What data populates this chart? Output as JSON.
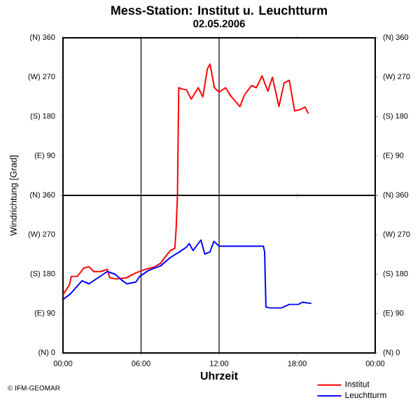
{
  "chart_data": [
    {
      "type": "line",
      "title": "Mess-Station: Institut u. Leuchtturm",
      "subtitle": "02.05.2006",
      "xlim": [
        0,
        24
      ],
      "xticks": [
        {
          "value": 0,
          "label": null
        },
        {
          "value": 6,
          "label": null
        },
        {
          "value": 12,
          "label": null
        },
        {
          "value": 18,
          "label": null
        },
        {
          "value": 24,
          "label": null
        }
      ],
      "ylim": [
        0,
        360
      ],
      "yticks": [
        {
          "value": 0,
          "label": null
        },
        {
          "value": 90,
          "label": "(E) 90"
        },
        {
          "value": 180,
          "label": "(S) 180"
        },
        {
          "value": 270,
          "label": "(W) 270"
        },
        {
          "value": 360,
          "label": "(N) 360"
        }
      ],
      "y2lim": [
        0,
        360
      ],
      "y2ticks": [
        {
          "value": 0,
          "label": null
        },
        {
          "value": 90,
          "label": "(E) 90"
        },
        {
          "value": 180,
          "label": "(S) 180"
        },
        {
          "value": 270,
          "label": "(W) 270"
        },
        {
          "value": 360,
          "label": "(N) 360"
        }
      ],
      "tick_labels": "y",
      "ref_lines": [
        {
          "axis": "x",
          "value": 6,
          "color": "#000000"
        },
        {
          "axis": "x",
          "value": 12,
          "color": "#000000"
        }
      ],
      "grid": false,
      "marker": "none",
      "line_style": "solid",
      "series": [
        {
          "color": "#ff0000",
          "x": [
            8.8,
            8.85,
            8.9,
            9.14,
            9.5,
            9.86,
            10.4,
            10.75,
            11.1,
            11.3,
            11.64,
            12.0,
            12.5,
            12.9,
            13.6,
            13.96,
            14.5,
            14.86,
            15.3,
            15.75,
            16.1,
            16.6,
            17.0,
            17.4,
            17.8,
            18.25,
            18.6,
            18.86
          ],
          "values": [
            0,
            128,
            246,
            243,
            241,
            220,
            246,
            225,
            289,
            300,
            246,
            236,
            246,
            227,
            203,
            230,
            251,
            246,
            273,
            238,
            270,
            203,
            257,
            263,
            193,
            196,
            202,
            187
          ]
        }
      ]
    },
    {
      "type": "line",
      "xlabel": "Uhrzeit",
      "ylabel": "Windrichtung [Grad]",
      "annotations": [
        "© IFM-GEOMAR"
      ],
      "xlim": [
        0,
        24
      ],
      "xticks": [
        {
          "value": 0,
          "label": "00:00"
        },
        {
          "value": 6,
          "label": "06:00"
        },
        {
          "value": 12,
          "label": "12:00"
        },
        {
          "value": 18,
          "label": "18:00"
        },
        {
          "value": 24,
          "label": "00:00"
        }
      ],
      "ylim": [
        0,
        360
      ],
      "yticks": [
        {
          "value": 0,
          "label": "(N) 0"
        },
        {
          "value": 90,
          "label": "(E) 90"
        },
        {
          "value": 180,
          "label": "(S) 180"
        },
        {
          "value": 270,
          "label": "(W) 270"
        },
        {
          "value": 360,
          "label": "(N) 360"
        }
      ],
      "y2lim": [
        0,
        360
      ],
      "y2ticks": [
        {
          "value": 0,
          "label": "(N) 0"
        },
        {
          "value": 90,
          "label": "(E) 90"
        },
        {
          "value": 180,
          "label": "(S) 180"
        },
        {
          "value": 270,
          "label": "(W) 270"
        },
        {
          "value": 360,
          "label": "(N) 360"
        }
      ],
      "ref_lines": [
        {
          "axis": "x",
          "value": 6,
          "color": "#000000"
        },
        {
          "axis": "x",
          "value": 12,
          "color": "#000000"
        }
      ],
      "legend": "bottom right",
      "grid": false,
      "marker": "none",
      "line_style": "solid",
      "series": [
        {
          "name": "Institut",
          "color": "#ff0000",
          "x": [
            0,
            0.5,
            0.64,
            1.1,
            1.6,
            2.0,
            2.36,
            2.9,
            3.4,
            3.6,
            4.1,
            4.9,
            5.6,
            6.3,
            7.0,
            7.5,
            7.9,
            8.25,
            8.6,
            8.7,
            8.8
          ],
          "values": [
            133,
            156,
            175,
            175,
            194,
            197,
            186,
            186,
            191,
            172,
            169,
            172,
            183,
            191,
            196,
            205,
            221,
            234,
            239,
            285,
            360
          ]
        },
        {
          "name": "Leuchtturm",
          "color": "#0000ff",
          "x": [
            0,
            0.57,
            1.46,
            2.0,
            2.7,
            3.4,
            4.0,
            4.5,
            4.9,
            5.6,
            5.9,
            6.6,
            7.5,
            8.25,
            8.96,
            9.5,
            9.7,
            10.0,
            10.6,
            10.9,
            11.3,
            11.6,
            12.0,
            15.4,
            15.5,
            15.6,
            15.9,
            16.8,
            17.4,
            18.1,
            18.4,
            19.1
          ],
          "values": [
            122,
            135,
            165,
            158,
            172,
            186,
            180,
            167,
            158,
            162,
            175,
            189,
            199,
            218,
            231,
            242,
            250,
            234,
            258,
            226,
            231,
            255,
            244,
            244,
            231,
            105,
            103,
            103,
            111,
            111,
            116,
            113
          ]
        }
      ]
    }
  ]
}
